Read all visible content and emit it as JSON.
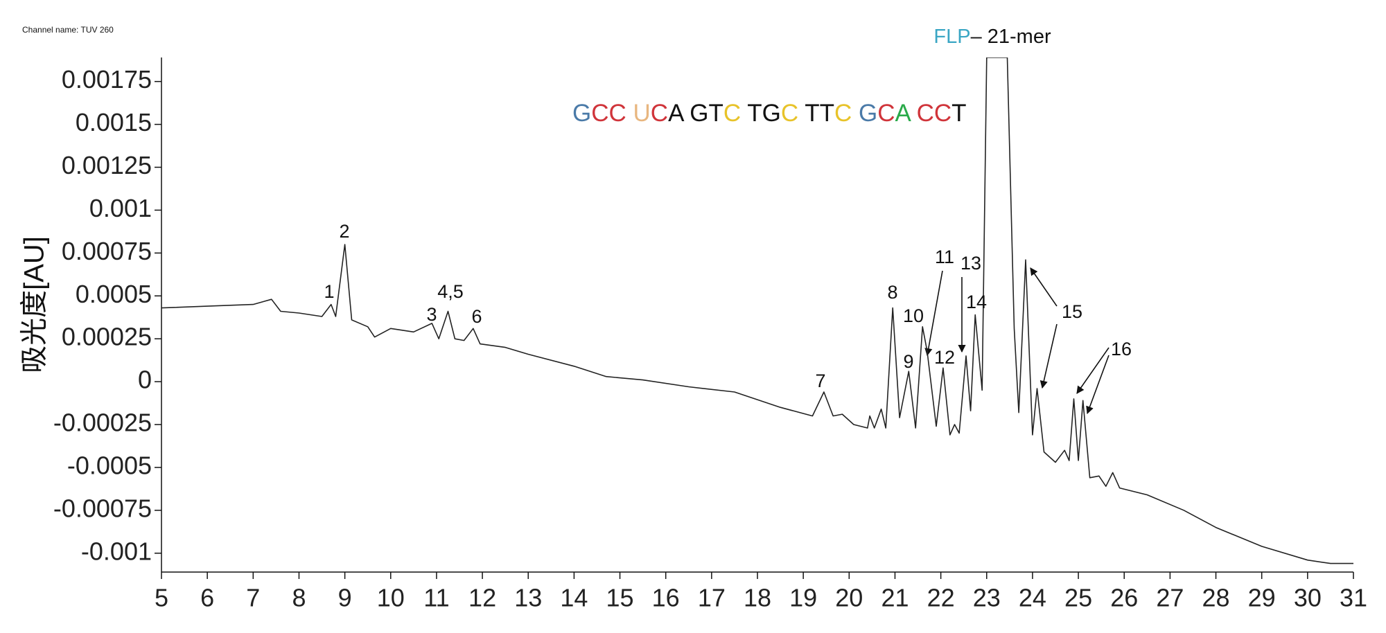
{
  "chart_data": {
    "type": "line",
    "channel": "Channel name: TUV 260",
    "ylabel": "吸光度[AU]",
    "xlim": [
      5,
      31
    ],
    "ylim": [
      -0.00111,
      0.00189
    ],
    "xticks": [
      5,
      6,
      7,
      8,
      9,
      10,
      11,
      12,
      13,
      14,
      15,
      16,
      17,
      18,
      19,
      20,
      21,
      22,
      23,
      24,
      25,
      26,
      27,
      28,
      29,
      30,
      31
    ],
    "yticks": [
      0.00175,
      0.0015,
      0.00125,
      0.001,
      0.00075,
      0.0005,
      0.00025,
      0,
      -0.00025,
      -0.0005,
      -0.00075,
      -0.001
    ],
    "heading": [
      {
        "text": "FLP",
        "color": "#3aa6c4"
      },
      {
        "text": "– 21-mer",
        "color": "#111111"
      }
    ],
    "sequence": [
      {
        "text": "G",
        "color": "#4a7aa8"
      },
      {
        "text": "CC ",
        "color": "#d0343a"
      },
      {
        "text": "U",
        "color": "#e8b67f"
      },
      {
        "text": "C",
        "color": "#d0343a"
      },
      {
        "text": "A GT",
        "color": "#111111"
      },
      {
        "text": "C ",
        "color": "#e8c32a"
      },
      {
        "text": "TG",
        "color": "#111111"
      },
      {
        "text": "C ",
        "color": "#e8c32a"
      },
      {
        "text": "TT",
        "color": "#111111"
      },
      {
        "text": "C ",
        "color": "#e8c32a"
      },
      {
        "text": "G",
        "color": "#4a7aa8"
      },
      {
        "text": "C",
        "color": "#d0343a"
      },
      {
        "text": "A ",
        "color": "#2aaa4a"
      },
      {
        "text": "CC",
        "color": "#d0343a"
      },
      {
        "text": "T",
        "color": "#111111"
      }
    ],
    "peak_labels": [
      "1",
      "2",
      "3",
      "4,5",
      "6",
      "7",
      "8",
      "9",
      "10",
      "11",
      "12",
      "13",
      "14",
      "15",
      "16"
    ],
    "series": [
      {
        "name": "TUV 260",
        "color": "#222222",
        "x": [
          5.0,
          6.0,
          7.0,
          7.4,
          7.6,
          8.0,
          8.5,
          8.7,
          8.8,
          9.0,
          9.15,
          9.5,
          9.65,
          10.0,
          10.5,
          10.9,
          11.05,
          11.25,
          11.4,
          11.6,
          11.8,
          11.95,
          12.5,
          13.0,
          14.0,
          14.7,
          15.5,
          16.5,
          17.5,
          18.5,
          19.2,
          19.45,
          19.65,
          19.85,
          20.1,
          20.4,
          20.45,
          20.55,
          20.7,
          20.8,
          20.95,
          21.1,
          21.3,
          21.45,
          21.6,
          21.7,
          21.9,
          22.05,
          22.2,
          22.3,
          22.4,
          22.55,
          22.65,
          22.75,
          22.9,
          23.0,
          23.45,
          23.6,
          23.7,
          23.85,
          24.0,
          24.1,
          24.25,
          24.5,
          24.7,
          24.8,
          24.9,
          25.0,
          25.1,
          25.25,
          25.45,
          25.6,
          25.75,
          25.9,
          26.5,
          27.3,
          28.0,
          29.0,
          30.0,
          30.5,
          31.0
        ],
        "values": [
          0.00043,
          0.00044,
          0.00045,
          0.00048,
          0.00041,
          0.0004,
          0.00038,
          0.00045,
          0.00038,
          0.0008,
          0.00036,
          0.00032,
          0.00026,
          0.00031,
          0.00029,
          0.00034,
          0.00025,
          0.00041,
          0.00025,
          0.00024,
          0.00031,
          0.00022,
          0.0002,
          0.00016,
          9e-05,
          3e-05,
          1e-05,
          -3e-05,
          -6e-05,
          -0.00015,
          -0.0002,
          -6e-05,
          -0.0002,
          -0.00019,
          -0.00025,
          -0.00027,
          -0.0002,
          -0.00027,
          -0.00016,
          -0.00027,
          0.00043,
          -0.00021,
          6e-05,
          -0.00027,
          0.00032,
          0.00018,
          -0.00026,
          8e-05,
          -0.00031,
          -0.00025,
          -0.0003,
          0.00015,
          -0.00017,
          0.00039,
          -5e-05,
          0.00189,
          0.00189,
          0.00031,
          -0.00018,
          0.00071,
          -0.00031,
          -4e-05,
          -0.00041,
          -0.00047,
          -0.0004,
          -0.00046,
          -0.0001,
          -0.00046,
          -0.00011,
          -0.00056,
          -0.00055,
          -0.00061,
          -0.00053,
          -0.00062,
          -0.00066,
          -0.00075,
          -0.00085,
          -0.00096,
          -0.00104,
          -0.00106,
          -0.00106
        ]
      }
    ]
  }
}
